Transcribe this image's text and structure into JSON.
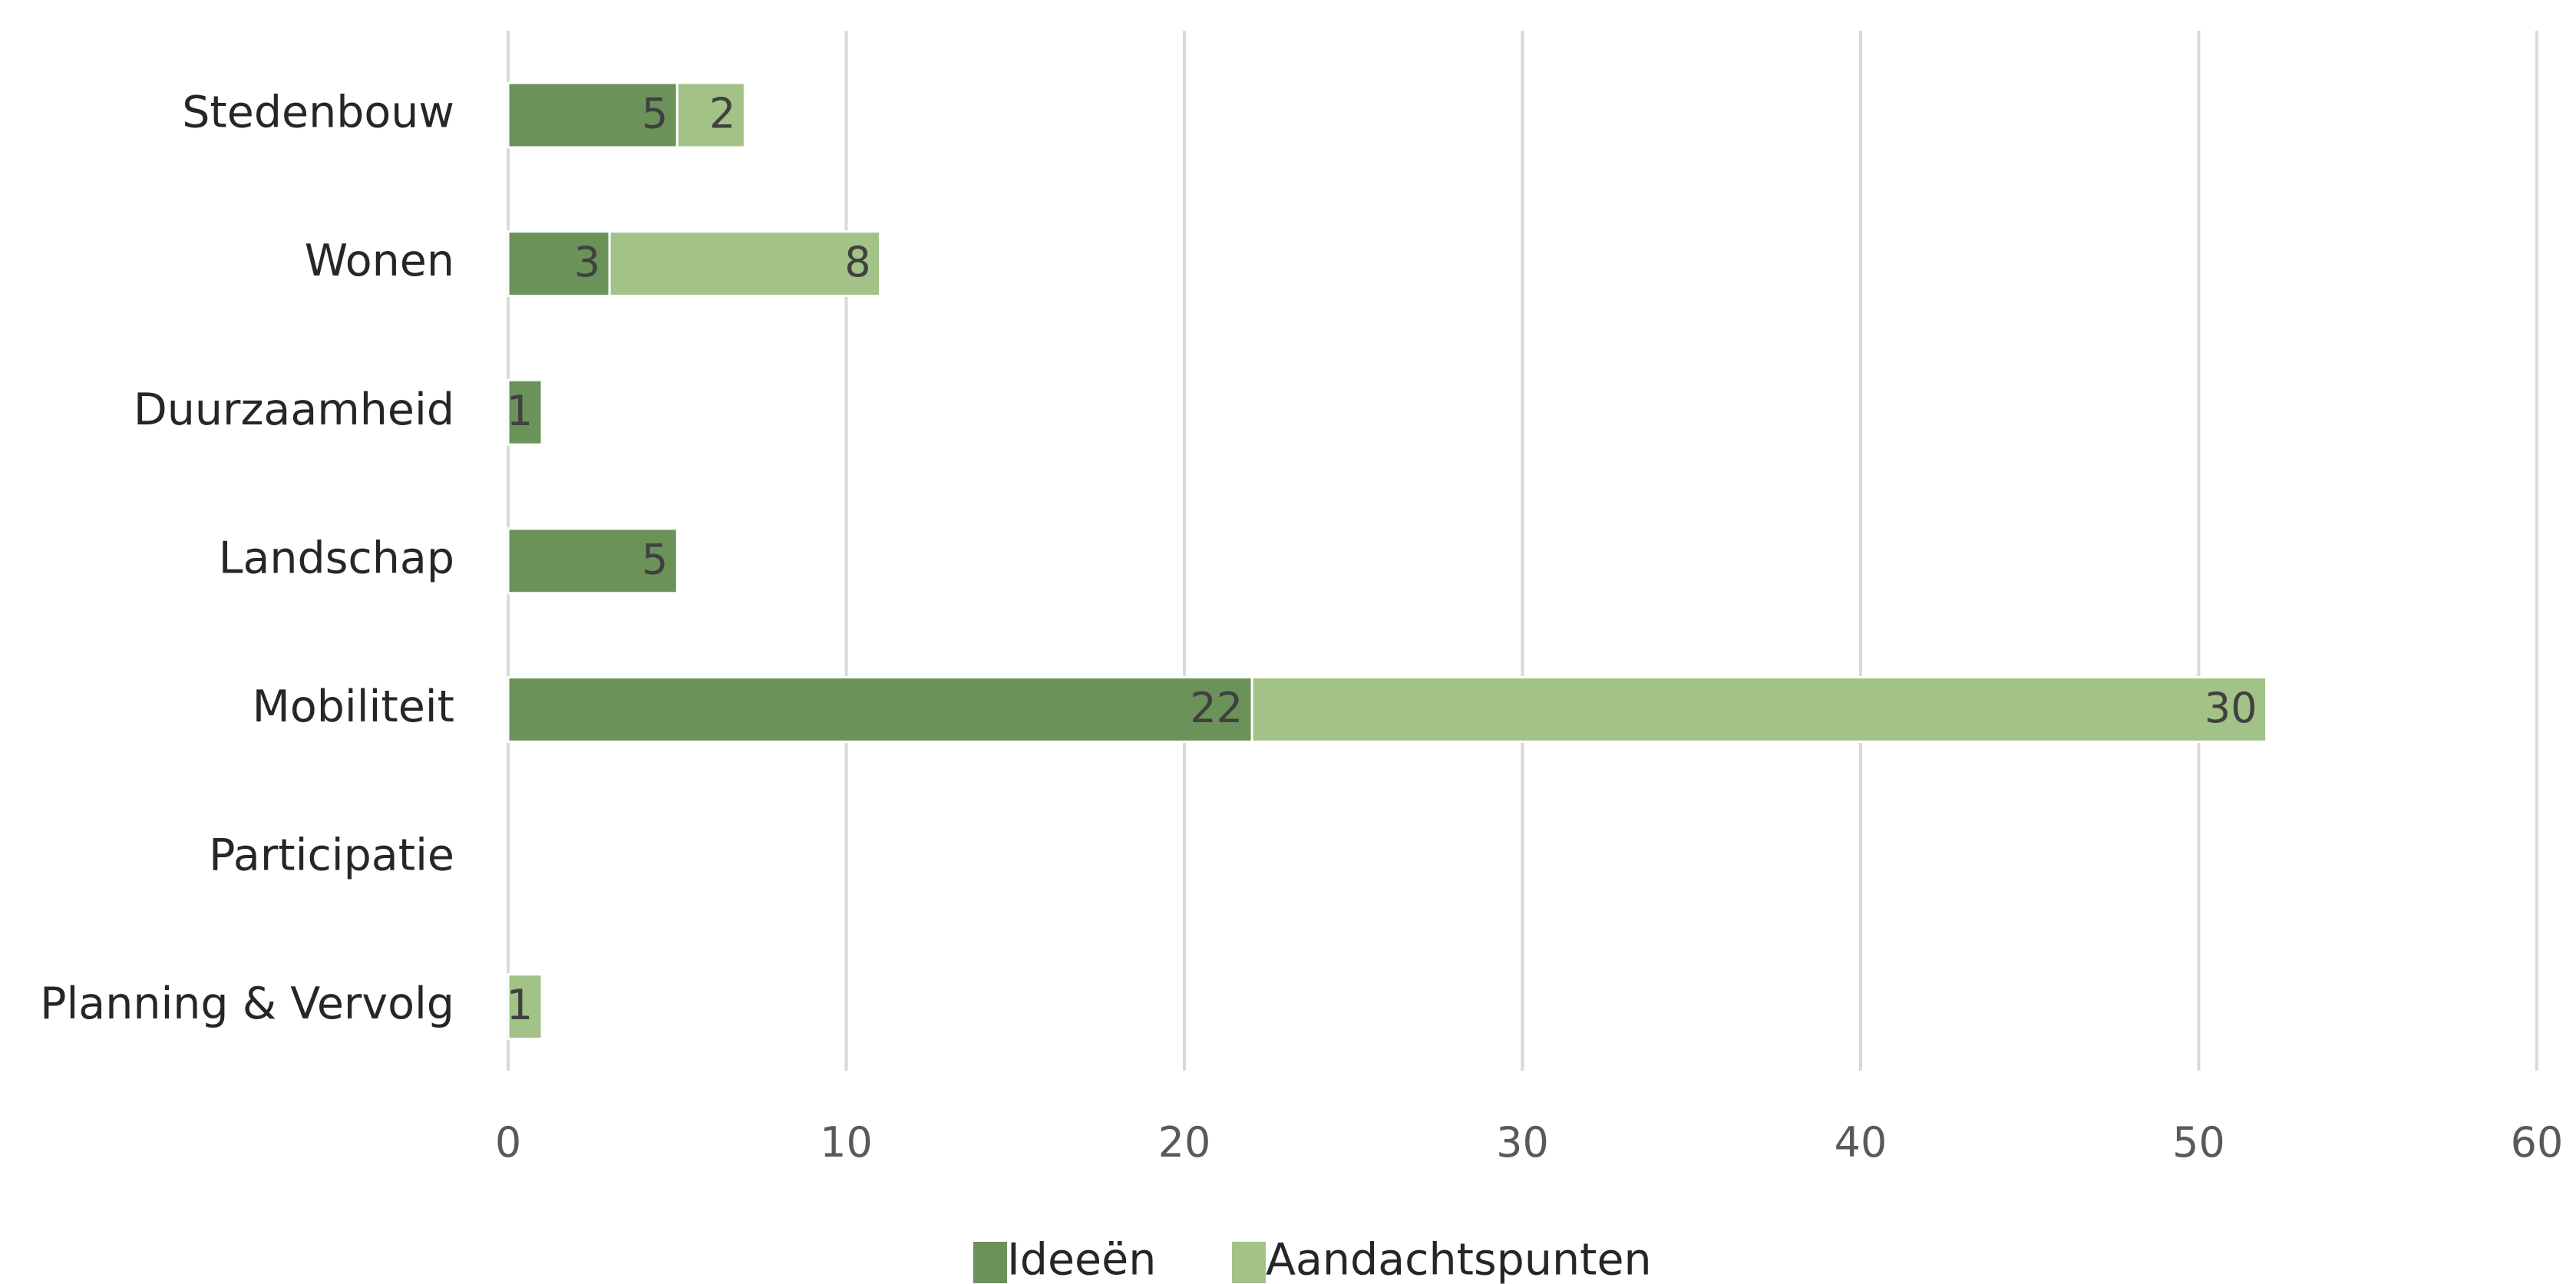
{
  "chart_data": {
    "type": "bar",
    "orientation": "horizontal",
    "stacked": true,
    "categories": [
      "Stedenbouw",
      "Wonen",
      "Duurzaamheid",
      "Landschap",
      "Mobiliteit",
      "Participatie",
      "Planning & Vervolg"
    ],
    "series": [
      {
        "name": "Ideeën",
        "color": "#6a9259",
        "values": [
          5,
          3,
          1,
          5,
          22,
          0,
          0
        ]
      },
      {
        "name": "Aandachtspunten",
        "color": "#a2c287",
        "values": [
          2,
          8,
          0,
          0,
          30,
          0,
          1
        ]
      }
    ],
    "xlim": [
      0,
      60
    ],
    "xticks": [
      0,
      10,
      20,
      30,
      40,
      50,
      60
    ],
    "grid": true,
    "legend_position": "bottom",
    "title": "",
    "xlabel": "",
    "ylabel": ""
  }
}
